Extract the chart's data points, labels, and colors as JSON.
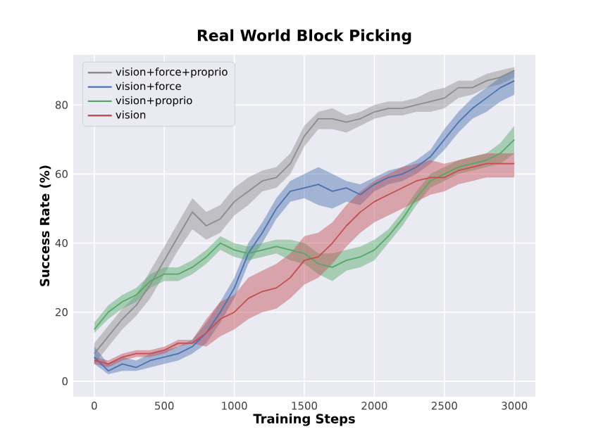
{
  "chart_data": {
    "type": "line",
    "title": "Real World Block Picking",
    "xlabel": "Training Steps",
    "ylabel": "Success Rate (%)",
    "x": [
      0,
      100,
      200,
      300,
      400,
      500,
      600,
      700,
      800,
      900,
      1000,
      1100,
      1200,
      1300,
      1400,
      1500,
      1600,
      1700,
      1800,
      1900,
      2000,
      2100,
      2200,
      2300,
      2400,
      2500,
      2600,
      2700,
      2800,
      2900,
      3000
    ],
    "xlim": [
      -150,
      3150
    ],
    "ylim": [
      -4.5,
      94.5
    ],
    "xticks": [
      0,
      500,
      1000,
      1500,
      2000,
      2500,
      3000
    ],
    "yticks": [
      0,
      20,
      40,
      60,
      80
    ],
    "grid": true,
    "legend": "top left",
    "marker": "none",
    "line_style": "solid",
    "series": [
      {
        "name": "vision+force+proprio",
        "color": "#8c8c8c",
        "values": [
          8,
          13,
          18,
          22,
          28,
          35,
          42,
          49,
          45,
          47,
          52,
          55,
          58,
          59,
          63,
          71,
          76,
          76,
          75,
          76,
          78,
          79,
          79,
          80,
          81,
          82,
          85,
          85,
          87,
          88,
          90
        ],
        "lower": [
          5,
          10,
          15,
          19,
          24,
          31,
          38,
          44,
          41,
          43,
          48,
          51,
          55,
          56,
          60,
          68,
          73,
          73,
          72,
          74,
          76,
          77,
          77,
          78,
          78,
          79,
          82,
          83,
          85,
          86,
          88
        ],
        "upper": [
          11,
          16,
          21,
          25,
          32,
          39,
          46,
          53,
          49,
          51,
          56,
          59,
          61,
          62,
          66,
          74,
          78,
          79,
          77,
          78,
          80,
          81,
          81,
          82,
          84,
          85,
          87,
          87,
          89,
          90,
          91
        ]
      },
      {
        "name": "vision+force",
        "color": "#4c72b0",
        "values": [
          7,
          3,
          5,
          4,
          6,
          7,
          8,
          10,
          14,
          20,
          27,
          37,
          43,
          50,
          55,
          56,
          57,
          55,
          56,
          54,
          57,
          59,
          60,
          62,
          65,
          70,
          75,
          79,
          82,
          85,
          87
        ],
        "lower": [
          5,
          2,
          3,
          3,
          4,
          5,
          6,
          8,
          11,
          17,
          24,
          34,
          40,
          47,
          52,
          53,
          51,
          50,
          52,
          51,
          55,
          57,
          58,
          60,
          63,
          67,
          72,
          76,
          78,
          81,
          83
        ],
        "upper": [
          10,
          5,
          7,
          6,
          8,
          9,
          10,
          12,
          17,
          23,
          30,
          40,
          46,
          53,
          58,
          60,
          62,
          60,
          58,
          57,
          59,
          61,
          62,
          64,
          67,
          73,
          78,
          82,
          85,
          88,
          90
        ]
      },
      {
        "name": "vision+proprio",
        "color": "#55a868",
        "values": [
          15,
          20,
          23,
          25,
          29,
          31,
          31,
          33,
          36,
          40,
          38,
          37,
          38,
          39,
          38,
          37,
          34,
          33,
          35,
          36,
          38,
          42,
          47,
          53,
          58,
          60,
          62,
          63,
          64,
          66,
          70
        ],
        "lower": [
          14,
          18,
          21,
          23,
          27,
          29,
          29,
          31,
          34,
          38,
          36,
          35,
          36,
          37,
          35,
          34,
          31,
          29,
          32,
          33,
          35,
          40,
          45,
          51,
          56,
          58,
          60,
          61,
          62,
          63,
          66
        ],
        "upper": [
          17,
          22,
          25,
          27,
          31,
          33,
          33,
          35,
          38,
          42,
          40,
          39,
          40,
          41,
          41,
          40,
          37,
          37,
          38,
          39,
          41,
          44,
          49,
          55,
          60,
          62,
          64,
          65,
          66,
          69,
          74
        ]
      },
      {
        "name": "vision",
        "color": "#c44e52",
        "values": [
          6,
          5,
          7,
          8,
          8,
          9,
          11,
          11,
          14,
          18,
          20,
          24,
          26,
          27,
          30,
          35,
          36,
          40,
          45,
          49,
          52,
          54,
          56,
          58,
          59,
          59,
          61,
          62,
          63,
          63,
          63
        ],
        "lower": [
          5,
          4,
          6,
          7,
          7,
          8,
          10,
          11,
          10,
          13,
          15,
          18,
          20,
          21,
          24,
          28,
          30,
          34,
          39,
          43,
          46,
          48,
          50,
          52,
          54,
          55,
          57,
          58,
          59,
          59,
          59
        ],
        "upper": [
          7,
          6,
          8,
          9,
          9,
          10,
          12,
          12,
          18,
          23,
          25,
          30,
          32,
          34,
          37,
          42,
          43,
          46,
          51,
          55,
          58,
          60,
          62,
          63,
          64,
          63,
          64,
          65,
          66,
          66,
          66
        ]
      }
    ]
  }
}
